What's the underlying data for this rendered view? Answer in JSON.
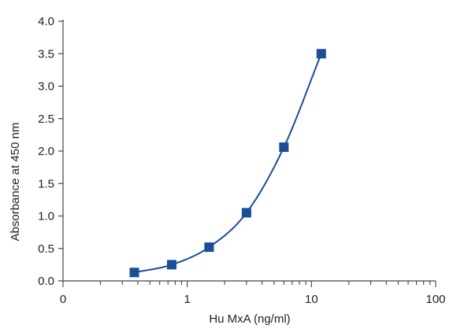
{
  "chart_data": {
    "type": "scatter",
    "xlabel": "Hu MxA (ng/ml)",
    "ylabel": "Absorbance at 450 nm",
    "x_scale": "log",
    "xlim": [
      0.1,
      100
    ],
    "ylim": [
      0,
      4.0
    ],
    "x_tick_labels": [
      "0",
      "1",
      "10",
      "100"
    ],
    "y_tick_labels": [
      "0.0",
      "0.5",
      "1.0",
      "1.5",
      "2.0",
      "2.5",
      "3.0",
      "3.5",
      "4.0"
    ],
    "grid": false,
    "legend": "none",
    "series": [
      {
        "x": [
          0.375,
          0.75,
          1.5,
          3,
          6,
          12
        ],
        "y": [
          0.13,
          0.25,
          0.52,
          1.05,
          2.06,
          3.5
        ],
        "marker": "square",
        "fitted_curve": true,
        "color": "#1a4f95"
      }
    ]
  }
}
